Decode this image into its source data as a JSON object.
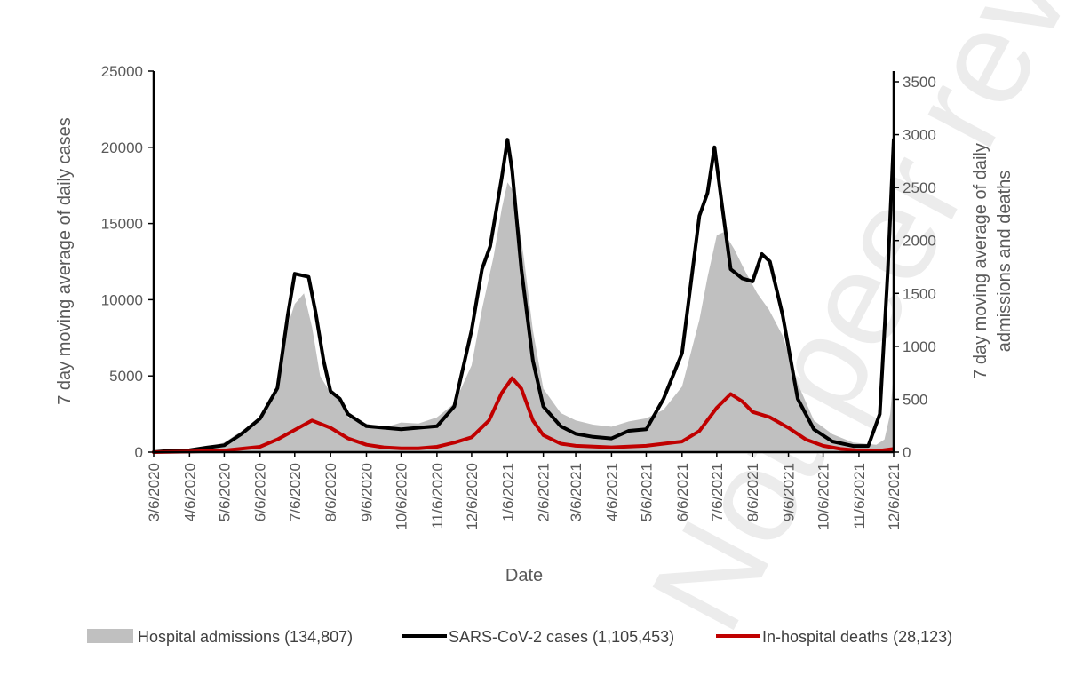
{
  "chart_data": {
    "type": "line",
    "xlabel": "Date",
    "ylabel_left": "7 day moving average of daily cases",
    "ylabel_right": [
      "7 day moving average of daily",
      "admissions and deaths"
    ],
    "ylim_left": [
      0,
      25000
    ],
    "ylim_right": [
      0,
      3650
    ],
    "yticks_left": [
      0,
      5000,
      10000,
      15000,
      20000,
      25000
    ],
    "yticks_right": [
      0,
      500,
      1000,
      1500,
      2000,
      2500,
      3000,
      3500
    ],
    "x_tick_labels": [
      "3/6/2020",
      "4/6/2020",
      "5/6/2020",
      "6/6/2020",
      "7/6/2020",
      "8/6/2020",
      "9/6/2020",
      "10/6/2020",
      "11/6/2020",
      "12/6/2020",
      "1/6/2021",
      "2/6/2021",
      "3/6/2021",
      "4/6/2021",
      "5/6/2021",
      "6/6/2021",
      "7/6/2021",
      "8/6/2021",
      "9/6/2021",
      "10/6/2021",
      "11/6/2021",
      "12/6/2021"
    ],
    "grid": false,
    "legend_position": "bottom",
    "watermark": "Not peer reviewed",
    "series": [
      {
        "name": "Hospital admissions (134,807)",
        "axis": "right",
        "style": "area",
        "color": "#c0c0c0",
        "points": [
          [
            "3/6/2020",
            0
          ],
          [
            "3/21/2020",
            10
          ],
          [
            "4/6/2020",
            25
          ],
          [
            "4/21/2020",
            45
          ],
          [
            "5/6/2020",
            90
          ],
          [
            "5/21/2020",
            200
          ],
          [
            "6/6/2020",
            320
          ],
          [
            "6/21/2020",
            600
          ],
          [
            "6/30/2020",
            1200
          ],
          [
            "7/6/2020",
            1400
          ],
          [
            "7/14/2020",
            1500
          ],
          [
            "7/21/2020",
            1180
          ],
          [
            "7/28/2020",
            720
          ],
          [
            "8/6/2020",
            560
          ],
          [
            "8/14/2020",
            480
          ],
          [
            "8/21/2020",
            330
          ],
          [
            "9/6/2020",
            270
          ],
          [
            "9/21/2020",
            230
          ],
          [
            "10/6/2020",
            280
          ],
          [
            "10/21/2020",
            270
          ],
          [
            "11/6/2020",
            330
          ],
          [
            "11/21/2020",
            460
          ],
          [
            "12/6/2020",
            820
          ],
          [
            "12/15/2020",
            1350
          ],
          [
            "12/25/2020",
            1850
          ],
          [
            "1/1/2021",
            2300
          ],
          [
            "1/6/2021",
            2550
          ],
          [
            "1/12/2021",
            2450
          ],
          [
            "1/20/2021",
            1850
          ],
          [
            "1/28/2021",
            1150
          ],
          [
            "2/6/2021",
            600
          ],
          [
            "2/21/2021",
            370
          ],
          [
            "3/6/2021",
            300
          ],
          [
            "3/21/2021",
            260
          ],
          [
            "4/6/2021",
            240
          ],
          [
            "4/21/2021",
            290
          ],
          [
            "5/6/2021",
            320
          ],
          [
            "5/21/2021",
            400
          ],
          [
            "6/6/2021",
            620
          ],
          [
            "6/21/2021",
            1250
          ],
          [
            "6/28/2021",
            1650
          ],
          [
            "7/6/2021",
            2050
          ],
          [
            "7/12/2021",
            2080
          ],
          [
            "7/21/2021",
            1920
          ],
          [
            "7/31/2021",
            1700
          ],
          [
            "8/10/2021",
            1500
          ],
          [
            "8/20/2021",
            1350
          ],
          [
            "9/1/2021",
            1100
          ],
          [
            "9/14/2021",
            650
          ],
          [
            "9/28/2021",
            300
          ],
          [
            "10/14/2021",
            170
          ],
          [
            "11/1/2021",
            90
          ],
          [
            "11/21/2021",
            70
          ],
          [
            "11/28/2021",
            120
          ],
          [
            "12/3/2021",
            360
          ],
          [
            "12/6/2021",
            750
          ]
        ]
      },
      {
        "name": "SARS-CoV-2 cases (1,105,453)",
        "axis": "left",
        "style": "line",
        "color": "#000000",
        "points": [
          [
            "3/6/2020",
            0
          ],
          [
            "3/21/2020",
            100
          ],
          [
            "4/6/2020",
            120
          ],
          [
            "4/21/2020",
            300
          ],
          [
            "5/6/2020",
            450
          ],
          [
            "5/21/2020",
            1200
          ],
          [
            "6/6/2020",
            2200
          ],
          [
            "6/21/2020",
            4200
          ],
          [
            "6/30/2020",
            9000
          ],
          [
            "7/6/2020",
            11700
          ],
          [
            "7/12/2020",
            11600
          ],
          [
            "7/18/2020",
            11500
          ],
          [
            "7/24/2020",
            9200
          ],
          [
            "7/31/2020",
            6000
          ],
          [
            "8/6/2020",
            4000
          ],
          [
            "8/14/2020",
            3500
          ],
          [
            "8/21/2020",
            2500
          ],
          [
            "9/6/2020",
            1700
          ],
          [
            "9/21/2020",
            1600
          ],
          [
            "10/6/2020",
            1500
          ],
          [
            "10/21/2020",
            1600
          ],
          [
            "11/6/2020",
            1700
          ],
          [
            "11/21/2020",
            3000
          ],
          [
            "12/6/2020",
            8000
          ],
          [
            "12/15/2020",
            12000
          ],
          [
            "12/22/2020",
            13500
          ],
          [
            "1/1/2021",
            18000
          ],
          [
            "1/6/2021",
            20500
          ],
          [
            "1/10/2021",
            18500
          ],
          [
            "1/18/2021",
            12000
          ],
          [
            "1/28/2021",
            6000
          ],
          [
            "2/6/2021",
            3000
          ],
          [
            "2/21/2021",
            1700
          ],
          [
            "3/6/2021",
            1200
          ],
          [
            "3/21/2021",
            1000
          ],
          [
            "4/6/2021",
            900
          ],
          [
            "4/21/2021",
            1400
          ],
          [
            "5/6/2021",
            1500
          ],
          [
            "5/21/2021",
            3500
          ],
          [
            "6/6/2021",
            6500
          ],
          [
            "6/21/2021",
            15500
          ],
          [
            "6/28/2021",
            17000
          ],
          [
            "7/4/2021",
            20000
          ],
          [
            "7/10/2021",
            16500
          ],
          [
            "7/18/2021",
            12000
          ],
          [
            "7/28/2021",
            11400
          ],
          [
            "8/6/2021",
            11200
          ],
          [
            "8/14/2021",
            13000
          ],
          [
            "8/21/2021",
            12500
          ],
          [
            "9/1/2021",
            9000
          ],
          [
            "9/14/2021",
            3500
          ],
          [
            "9/28/2021",
            1500
          ],
          [
            "10/14/2021",
            700
          ],
          [
            "11/1/2021",
            400
          ],
          [
            "11/14/2021",
            400
          ],
          [
            "11/24/2021",
            2500
          ],
          [
            "12/1/2021",
            12000
          ],
          [
            "12/6/2021",
            20500
          ]
        ]
      },
      {
        "name": "In-hospital deaths (28,123)",
        "axis": "right",
        "style": "line",
        "color": "#c00000",
        "points": [
          [
            "3/6/2020",
            0
          ],
          [
            "4/6/2020",
            5
          ],
          [
            "5/6/2020",
            15
          ],
          [
            "6/6/2020",
            50
          ],
          [
            "6/21/2020",
            120
          ],
          [
            "7/6/2020",
            210
          ],
          [
            "7/21/2020",
            300
          ],
          [
            "8/6/2020",
            230
          ],
          [
            "8/21/2020",
            130
          ],
          [
            "9/6/2020",
            70
          ],
          [
            "9/21/2020",
            45
          ],
          [
            "10/6/2020",
            35
          ],
          [
            "10/21/2020",
            35
          ],
          [
            "11/6/2020",
            50
          ],
          [
            "11/21/2020",
            90
          ],
          [
            "12/6/2020",
            140
          ],
          [
            "12/21/2020",
            300
          ],
          [
            "1/1/2021",
            560
          ],
          [
            "1/10/2021",
            700
          ],
          [
            "1/18/2021",
            600
          ],
          [
            "1/28/2021",
            300
          ],
          [
            "2/6/2021",
            160
          ],
          [
            "2/21/2021",
            80
          ],
          [
            "3/6/2021",
            60
          ],
          [
            "4/6/2021",
            45
          ],
          [
            "5/6/2021",
            60
          ],
          [
            "6/6/2021",
            100
          ],
          [
            "6/21/2021",
            200
          ],
          [
            "7/6/2021",
            420
          ],
          [
            "7/18/2021",
            550
          ],
          [
            "7/28/2021",
            480
          ],
          [
            "8/6/2021",
            380
          ],
          [
            "8/21/2021",
            330
          ],
          [
            "9/6/2021",
            230
          ],
          [
            "9/21/2021",
            120
          ],
          [
            "10/6/2021",
            60
          ],
          [
            "10/21/2021",
            30
          ],
          [
            "11/6/2021",
            15
          ],
          [
            "11/21/2021",
            10
          ],
          [
            "12/6/2021",
            30
          ]
        ]
      }
    ]
  }
}
